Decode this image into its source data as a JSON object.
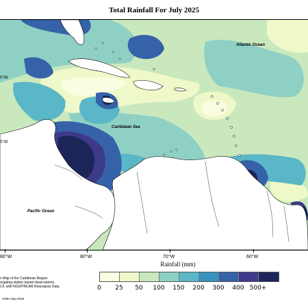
{
  "title": "Total Rainfall For July 2025",
  "ocean_labels": {
    "atlantic": "Atlantic Ocean",
    "caribbean": "Caribbean Sea",
    "pacific": "Pacific Ocean"
  },
  "axis": {
    "x_ticks": [
      "80°W",
      "80°W",
      "70°W",
      "60°W"
    ],
    "y_ticks": [
      "0°W",
      "0°W"
    ]
  },
  "legend": {
    "title": "Rainfall (mm)",
    "unit": "mm",
    "bins": [
      {
        "label": "0",
        "color": "#fbfde0"
      },
      {
        "label": "25",
        "color": "#eff8c8"
      },
      {
        "label": "50",
        "color": "#c9e8bd"
      },
      {
        "label": "100",
        "color": "#8fd0c4"
      },
      {
        "label": "150",
        "color": "#59b7c7"
      },
      {
        "label": "200",
        "color": "#3894bf"
      },
      {
        "label": "300",
        "color": "#3562a8"
      },
      {
        "label": "400",
        "color": "#3d3a8a"
      },
      {
        "label": "500+",
        "color": "#1c2557"
      }
    ]
  },
  "footnote": {
    "line1": "n Map of the Caribbean Region",
    "line2": "regating station based observations,",
    "line3": "CF, with NCEP/NCAR Reanalysis Data."
  },
  "credit": "CIMH Sep-2025"
}
